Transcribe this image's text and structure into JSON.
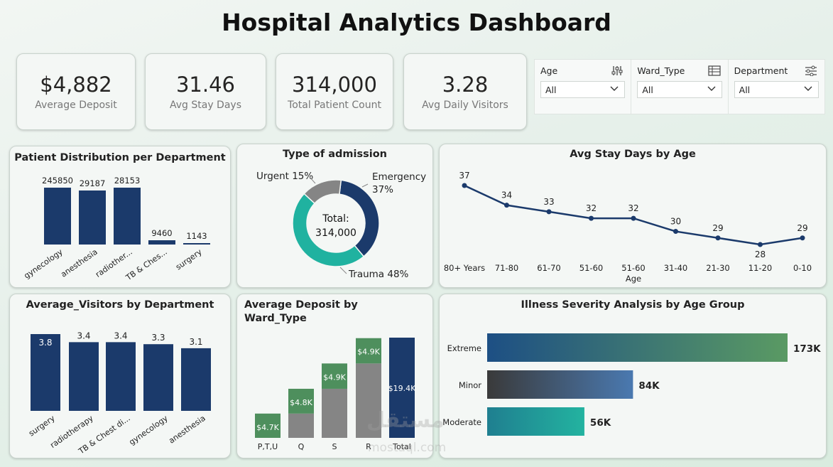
{
  "header": {
    "title": "Hospital Analytics Dashboard"
  },
  "kpis": [
    {
      "value": "$4,882",
      "label": "Average Deposit"
    },
    {
      "value": "31.46",
      "label": "Avg Stay Days"
    },
    {
      "value": "314,000",
      "label": "Total Patient Count"
    },
    {
      "value": "3.28",
      "label": "Avg Daily Visitors"
    }
  ],
  "filters": [
    {
      "label": "Age",
      "value": "All",
      "icon": "sliders-icon"
    },
    {
      "label": "Ward_Type",
      "value": "All",
      "icon": "table-icon"
    },
    {
      "label": "Department",
      "value": "All",
      "icon": "filter-settings-icon"
    }
  ],
  "colors": {
    "navy": "#1b3a6b",
    "teal": "#20b2a0",
    "gray": "#858585",
    "green": "#4e8f5d"
  },
  "charts": {
    "dept_distribution": {
      "title": "Patient Distribution per Department",
      "type": "bar",
      "categories": [
        "gynecology",
        "anesthesia",
        "radiother...",
        "TB & Ches...",
        "surgery"
      ],
      "values": [
        245850,
        29187,
        28153,
        9460,
        1143
      ],
      "labels": [
        "245850",
        "29187",
        "28153",
        "9460",
        "1143"
      ]
    },
    "admission_type": {
      "title": "Type of admission",
      "type": "pie",
      "center_label": "Total:",
      "center_value": "314,000",
      "slices": [
        {
          "name": "Emergency",
          "percent": 37,
          "label_line1": "Emergency",
          "label_line2": "37%",
          "color": "#1b3a6b"
        },
        {
          "name": "Trauma",
          "percent": 48,
          "label_line1": "Trauma 48%",
          "color": "#20b2a0"
        },
        {
          "name": "Urgent",
          "percent": 15,
          "label_line1": "Urgent 15%",
          "color": "#858585"
        }
      ]
    },
    "stay_by_age": {
      "title": "Avg Stay Days by Age",
      "type": "line",
      "xlabel": "Age",
      "categories": [
        "80+ Years",
        "71-80",
        "61-70",
        "51-60",
        "51-60",
        "31-40",
        "21-30",
        "11-20",
        "0-10"
      ],
      "values": [
        37,
        34,
        33,
        32,
        32,
        30,
        29,
        28,
        29
      ],
      "labels": [
        "37",
        "34",
        "33",
        "32",
        "32",
        "30",
        "29",
        "28",
        "29"
      ]
    },
    "visitors_by_dept": {
      "title": "Average_Visitors by Department",
      "type": "bar",
      "categories": [
        "surgery",
        "radiotherapy",
        "TB & Chest di...",
        "gynecology",
        "anesthesia"
      ],
      "values": [
        3.8,
        3.4,
        3.4,
        3.3,
        3.1
      ],
      "labels": [
        "3.8",
        "3.4",
        "3.4",
        "3.3",
        "3.1"
      ]
    },
    "deposit_by_ward": {
      "title_line1": "Average Deposit by",
      "title_line2": "Ward_Type",
      "type": "bar",
      "categories": [
        "P,T,U",
        "Q",
        "S",
        "R",
        "Total"
      ],
      "values": [
        4.7,
        4.8,
        4.9,
        4.9,
        19.4
      ],
      "labels": [
        "$4.7K",
        "$4.8K",
        "$4.9K",
        "$4.9K",
        "$19.4K"
      ]
    },
    "severity_by_age": {
      "title": "Illness Severity Analysis by Age Group",
      "type": "bar",
      "categories": [
        "Extreme",
        "Minor",
        "Moderate"
      ],
      "values": [
        173,
        84,
        56
      ],
      "labels": [
        "173K",
        "84K",
        "56K"
      ]
    }
  },
  "chart_data": [
    {
      "type": "bar",
      "title": "Patient Distribution per Department",
      "categories": [
        "gynecology",
        "anesthesia",
        "radiother...",
        "TB & Ches...",
        "surgery"
      ],
      "values": [
        245850,
        29187,
        28153,
        9460,
        1143
      ]
    },
    {
      "type": "pie",
      "title": "Type of admission",
      "categories": [
        "Emergency",
        "Trauma",
        "Urgent"
      ],
      "values": [
        37,
        48,
        15
      ]
    },
    {
      "type": "line",
      "title": "Avg Stay Days by Age",
      "xlabel": "Age",
      "categories": [
        "80+ Years",
        "71-80",
        "61-70",
        "51-60",
        "51-60",
        "31-40",
        "21-30",
        "11-20",
        "0-10"
      ],
      "values": [
        37,
        34,
        33,
        32,
        32,
        30,
        29,
        28,
        29
      ]
    },
    {
      "type": "bar",
      "title": "Average_Visitors by Department",
      "categories": [
        "surgery",
        "radiotherapy",
        "TB & Chest di...",
        "gynecology",
        "anesthesia"
      ],
      "values": [
        3.8,
        3.4,
        3.4,
        3.3,
        3.1
      ]
    },
    {
      "type": "bar",
      "title": "Average Deposit by Ward_Type",
      "categories": [
        "P,T,U",
        "Q",
        "S",
        "R",
        "Total"
      ],
      "values": [
        4.7,
        4.8,
        4.9,
        4.9,
        19.4
      ]
    },
    {
      "type": "bar",
      "title": "Illness Severity Analysis by Age Group",
      "categories": [
        "Extreme",
        "Minor",
        "Moderate"
      ],
      "values": [
        173,
        84,
        56
      ]
    }
  ],
  "watermark": {
    "text": "مستقل",
    "sub": "mostaql.com"
  }
}
